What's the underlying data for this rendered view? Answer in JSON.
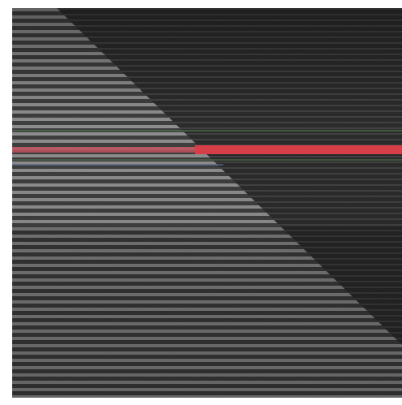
{
  "image": {
    "description_colors": {
      "background": "#242424",
      "stripe_light": "#8c8c8c",
      "stripe_dark": "#3a3a3a",
      "highlight_line": "#e03c46",
      "accent_green": "#5c7a5c",
      "accent_blue": "#5a6a8c"
    }
  }
}
